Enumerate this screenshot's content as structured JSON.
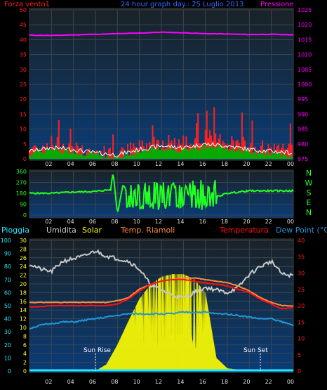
{
  "colors": {
    "wind": "#ff2020",
    "wind_avg": "#00b000",
    "gust": "#ffffff",
    "pressure": "#ff00ff",
    "direction": "#22ff22",
    "rain": "#22e7ff",
    "humidity": "#c8c8c8",
    "solar": "#ffff00",
    "heat_index": "#ff8a3c",
    "temperature": "#ff1010",
    "dew_point": "#2196d3"
  },
  "header": {
    "left_title": "Forza vento1",
    "center_title": "24 hour graph day.: 25 Luglio 2013",
    "right_title": "Pressione"
  },
  "panel1": {
    "left_ticks": [
      "0",
      "5",
      "10",
      "15",
      "20",
      "25",
      "30",
      "35",
      "40",
      "45",
      "50"
    ],
    "right_ticks": [
      "975",
      "980",
      "985",
      "990",
      "995",
      "1000",
      "1005",
      "1010",
      "1015",
      "1020",
      "1025"
    ]
  },
  "panel2": {
    "left_ticks": [
      "0",
      "90",
      "180",
      "270",
      "360"
    ],
    "compass": [
      "N",
      "W",
      "S",
      "E",
      "N"
    ]
  },
  "legend3": {
    "rain": "Pioggia",
    "humidity": "Umidita",
    "solar": "Solar",
    "heat_index": "Temp. Riamoli",
    "temperature": "Temperatura",
    "dew_point": "Dew Point (°C)"
  },
  "panel3": {
    "rain_ticks": [
      "0",
      "10",
      "20",
      "30",
      "40",
      "50",
      "60",
      "70",
      "80",
      "90",
      "100"
    ],
    "humidity_ticks": [
      "0",
      "2",
      "4",
      "6",
      "8",
      "10",
      "12",
      "14",
      "16",
      "18",
      "20",
      "22",
      "24",
      "26",
      "28",
      "30"
    ],
    "temp_ticks": [
      "0",
      "5",
      "10",
      "15",
      "20",
      "25",
      "30",
      "35",
      "40"
    ],
    "sun_rise": "Sun Rise",
    "sun_set": "Sun Set"
  },
  "x_ticks": [
    "02",
    "04",
    "06",
    "08",
    "10",
    "12",
    "14",
    "16",
    "18",
    "20",
    "22",
    "00"
  ],
  "chart_data": [
    {
      "type": "line",
      "title": "24 hour graph day.: 25 Luglio 2013",
      "ylabel": "Forza vento1",
      "ylabel_right": "Pressione",
      "x_hours": [
        0,
        2,
        4,
        6,
        8,
        10,
        12,
        14,
        16,
        18,
        20,
        22,
        24
      ],
      "series": [
        {
          "name": "Forza vento1",
          "axis": "left",
          "values": [
            3,
            5,
            4,
            2,
            1,
            4,
            6,
            5,
            7,
            6,
            4,
            3,
            2
          ]
        },
        {
          "name": "Pressione",
          "axis": "right",
          "values": [
            1016.5,
            1016.4,
            1016.6,
            1016.8,
            1017,
            1017.2,
            1017.5,
            1017.3,
            1017,
            1016.9,
            1016.7,
            1016.8,
            1016.6
          ]
        }
      ],
      "ylim": [
        0,
        50
      ],
      "ylim_right": [
        975,
        1025
      ]
    },
    {
      "type": "line",
      "x_hours": [
        0,
        2,
        4,
        6,
        7.4,
        7.6,
        8,
        8.5,
        10,
        12,
        14,
        16,
        18,
        20,
        22,
        24
      ],
      "series": [
        {
          "name": "direction",
          "values": [
            180,
            180,
            190,
            195,
            210,
            360,
            10,
            250,
            80,
            60,
            80,
            120,
            180,
            200,
            200,
            200
          ]
        }
      ],
      "ylim": [
        0,
        360
      ]
    },
    {
      "type": "line",
      "x_hours": [
        0,
        1,
        2,
        3,
        4,
        5,
        6,
        7,
        8,
        9,
        10,
        11,
        12,
        13,
        14,
        15,
        16,
        17,
        18,
        19,
        20,
        21,
        22,
        23,
        24
      ],
      "series": [
        {
          "name": "Umidita",
          "values": [
            82,
            78,
            76,
            84,
            86,
            88,
            92,
            88,
            86,
            84,
            78,
            66,
            62,
            58,
            56,
            60,
            64,
            62,
            60,
            64,
            74,
            80,
            84,
            74,
            73
          ]
        },
        {
          "name": "Temperatura",
          "values": [
            19.6,
            19.7,
            20,
            20,
            20,
            20,
            20,
            20,
            20.5,
            22,
            24.5,
            26.5,
            27.5,
            28,
            28,
            27.5,
            27,
            26.5,
            26,
            25,
            24,
            22,
            20.5,
            19,
            19.5
          ]
        },
        {
          "name": "Temp. Riamoli",
          "values": [
            21,
            21,
            21,
            21,
            21,
            21,
            21,
            21,
            21.5,
            22.5,
            25,
            26.5,
            27.5,
            28,
            28.5,
            28.5,
            28,
            27.5,
            27,
            26,
            24.5,
            22.5,
            21,
            20,
            20
          ]
        },
        {
          "name": "Dew Point (°C)",
          "values": [
            13,
            14,
            14.5,
            15,
            15,
            15.5,
            16,
            16.5,
            17,
            17.5,
            17.5,
            17.5,
            17.5,
            17.5,
            18,
            18,
            18,
            17.5,
            17.5,
            17,
            16.5,
            16,
            16,
            15,
            14
          ]
        },
        {
          "name": "Solar",
          "values": [
            0,
            0,
            0,
            0,
            0,
            0,
            0,
            5,
            20,
            38,
            55,
            66,
            72,
            74,
            74,
            70,
            60,
            10,
            2,
            1,
            0,
            0,
            0,
            0,
            0
          ]
        },
        {
          "name": "Pioggia",
          "values": [
            0,
            0,
            0,
            0,
            0,
            0,
            0,
            0,
            0,
            0,
            0,
            0,
            0,
            0,
            0,
            0,
            0,
            0,
            0,
            0,
            0,
            0,
            0,
            0,
            0
          ]
        }
      ],
      "ylim_rain": [
        0,
        100
      ],
      "ylim_humidity": [
        0,
        30
      ],
      "ylim_temp": [
        0,
        40
      ]
    }
  ]
}
